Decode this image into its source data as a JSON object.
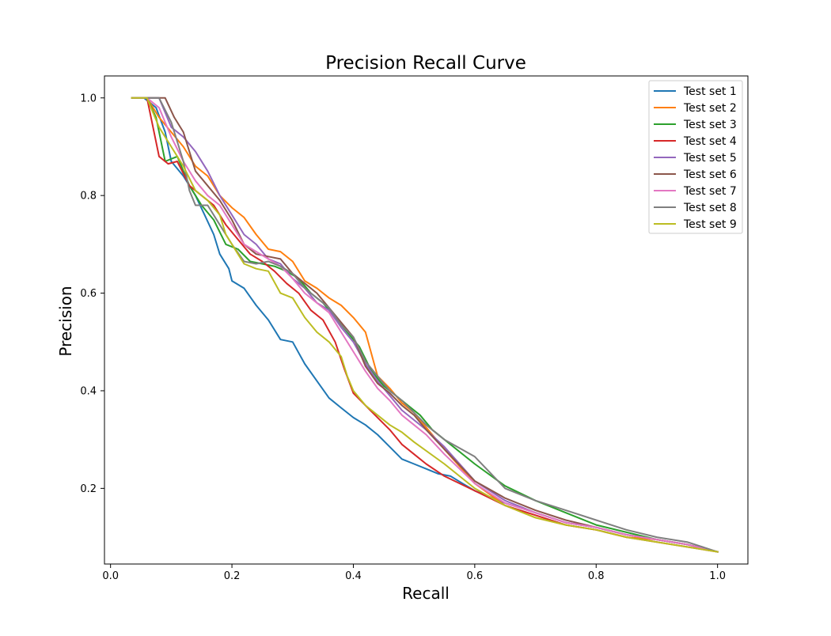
{
  "chart_data": {
    "type": "line",
    "title": "Precision Recall Curve",
    "xlabel": "Recall",
    "ylabel": "Precision",
    "xlim": [
      -0.01,
      1.05
    ],
    "ylim": [
      0.045,
      1.045
    ],
    "xticks": [
      0.0,
      0.2,
      0.4,
      0.6,
      0.8,
      1.0
    ],
    "xtick_labels": [
      "0.0",
      "0.2",
      "0.4",
      "0.6",
      "0.8",
      "1.0"
    ],
    "yticks": [
      0.2,
      0.4,
      0.6,
      0.8,
      1.0
    ],
    "ytick_labels": [
      "0.2",
      "0.4",
      "0.6",
      "0.8",
      "1.0"
    ],
    "grid": false,
    "legend": "top-right",
    "series": [
      {
        "name": "Test set 1",
        "color": "#1f77b4",
        "x": [
          0.035,
          0.055,
          0.075,
          0.09,
          0.1,
          0.12,
          0.14,
          0.155,
          0.17,
          0.18,
          0.195,
          0.2,
          0.22,
          0.24,
          0.26,
          0.28,
          0.3,
          0.32,
          0.34,
          0.36,
          0.38,
          0.4,
          0.42,
          0.44,
          0.46,
          0.48,
          0.5,
          0.52,
          0.54,
          0.56,
          0.58,
          0.6,
          0.65,
          0.7,
          0.75,
          0.8,
          0.85,
          0.9,
          0.95,
          1.0
        ],
        "y": [
          1.0,
          1.0,
          0.98,
          0.93,
          0.87,
          0.84,
          0.8,
          0.76,
          0.72,
          0.68,
          0.65,
          0.625,
          0.61,
          0.575,
          0.545,
          0.505,
          0.5,
          0.455,
          0.42,
          0.385,
          0.365,
          0.345,
          0.33,
          0.31,
          0.285,
          0.26,
          0.25,
          0.24,
          0.23,
          0.225,
          0.21,
          0.195,
          0.17,
          0.15,
          0.13,
          0.12,
          0.105,
          0.095,
          0.085,
          0.07
        ]
      },
      {
        "name": "Test set 2",
        "color": "#ff7f0e",
        "x": [
          0.035,
          0.06,
          0.08,
          0.1,
          0.12,
          0.14,
          0.16,
          0.18,
          0.2,
          0.22,
          0.24,
          0.26,
          0.28,
          0.3,
          0.32,
          0.34,
          0.36,
          0.38,
          0.4,
          0.42,
          0.44,
          0.46,
          0.48,
          0.5,
          0.52,
          0.55,
          0.6,
          0.65,
          0.7,
          0.75,
          0.8,
          0.85,
          0.9,
          0.95,
          1.0
        ],
        "y": [
          1.0,
          1.0,
          0.96,
          0.93,
          0.9,
          0.86,
          0.84,
          0.8,
          0.775,
          0.755,
          0.72,
          0.69,
          0.685,
          0.665,
          0.625,
          0.61,
          0.59,
          0.575,
          0.55,
          0.52,
          0.43,
          0.405,
          0.375,
          0.355,
          0.325,
          0.28,
          0.21,
          0.165,
          0.14,
          0.125,
          0.115,
          0.1,
          0.095,
          0.085,
          0.07
        ]
      },
      {
        "name": "Test set 3",
        "color": "#2ca02c",
        "x": [
          0.035,
          0.06,
          0.075,
          0.09,
          0.11,
          0.13,
          0.15,
          0.17,
          0.19,
          0.21,
          0.23,
          0.25,
          0.27,
          0.29,
          0.31,
          0.33,
          0.35,
          0.37,
          0.39,
          0.41,
          0.43,
          0.45,
          0.47,
          0.49,
          0.51,
          0.53,
          0.55,
          0.6,
          0.65,
          0.7,
          0.75,
          0.8,
          0.85,
          0.9,
          0.95,
          1.0
        ],
        "y": [
          1.0,
          1.0,
          0.96,
          0.87,
          0.88,
          0.82,
          0.78,
          0.75,
          0.7,
          0.69,
          0.665,
          0.66,
          0.655,
          0.645,
          0.63,
          0.6,
          0.58,
          0.55,
          0.52,
          0.49,
          0.44,
          0.41,
          0.39,
          0.37,
          0.35,
          0.32,
          0.3,
          0.25,
          0.205,
          0.175,
          0.15,
          0.125,
          0.11,
          0.095,
          0.085,
          0.07
        ]
      },
      {
        "name": "Test set 4",
        "color": "#d62728",
        "x": [
          0.035,
          0.06,
          0.08,
          0.095,
          0.11,
          0.13,
          0.15,
          0.17,
          0.19,
          0.21,
          0.23,
          0.25,
          0.27,
          0.29,
          0.31,
          0.33,
          0.35,
          0.37,
          0.385,
          0.4,
          0.42,
          0.44,
          0.46,
          0.48,
          0.5,
          0.52,
          0.55,
          0.6,
          0.65,
          0.7,
          0.75,
          0.8,
          0.85,
          0.9,
          0.95,
          1.0
        ],
        "y": [
          1.0,
          1.0,
          0.88,
          0.865,
          0.87,
          0.82,
          0.8,
          0.78,
          0.74,
          0.71,
          0.68,
          0.665,
          0.645,
          0.62,
          0.6,
          0.565,
          0.545,
          0.5,
          0.445,
          0.395,
          0.37,
          0.345,
          0.32,
          0.29,
          0.27,
          0.25,
          0.225,
          0.195,
          0.165,
          0.145,
          0.125,
          0.115,
          0.1,
          0.09,
          0.08,
          0.07
        ]
      },
      {
        "name": "Test set 5",
        "color": "#9467bd",
        "x": [
          0.035,
          0.06,
          0.08,
          0.1,
          0.12,
          0.14,
          0.16,
          0.18,
          0.2,
          0.22,
          0.24,
          0.26,
          0.28,
          0.3,
          0.32,
          0.34,
          0.36,
          0.38,
          0.4,
          0.42,
          0.44,
          0.46,
          0.48,
          0.5,
          0.52,
          0.55,
          0.6,
          0.65,
          0.7,
          0.75,
          0.8,
          0.85,
          0.9,
          0.95,
          1.0
        ],
        "y": [
          1.0,
          1.0,
          1.0,
          0.94,
          0.92,
          0.89,
          0.85,
          0.8,
          0.76,
          0.72,
          0.7,
          0.67,
          0.66,
          0.63,
          0.61,
          0.58,
          0.565,
          0.53,
          0.5,
          0.455,
          0.42,
          0.39,
          0.36,
          0.34,
          0.32,
          0.285,
          0.215,
          0.175,
          0.15,
          0.13,
          0.12,
          0.105,
          0.095,
          0.085,
          0.07
        ]
      },
      {
        "name": "Test set 6",
        "color": "#8c564b",
        "x": [
          0.035,
          0.06,
          0.08,
          0.09,
          0.105,
          0.12,
          0.14,
          0.16,
          0.18,
          0.2,
          0.22,
          0.24,
          0.26,
          0.28,
          0.3,
          0.32,
          0.34,
          0.36,
          0.38,
          0.4,
          0.42,
          0.44,
          0.46,
          0.48,
          0.5,
          0.52,
          0.55,
          0.6,
          0.65,
          0.7,
          0.75,
          0.8,
          0.85,
          0.9,
          0.95,
          1.0
        ],
        "y": [
          1.0,
          1.0,
          1.0,
          1.0,
          0.96,
          0.93,
          0.85,
          0.82,
          0.79,
          0.75,
          0.7,
          0.68,
          0.675,
          0.67,
          0.64,
          0.62,
          0.6,
          0.57,
          0.54,
          0.51,
          0.45,
          0.415,
          0.395,
          0.37,
          0.35,
          0.32,
          0.28,
          0.215,
          0.18,
          0.155,
          0.135,
          0.12,
          0.105,
          0.095,
          0.085,
          0.07
        ]
      },
      {
        "name": "Test set 7",
        "color": "#e377c2",
        "x": [
          0.035,
          0.06,
          0.08,
          0.1,
          0.12,
          0.14,
          0.16,
          0.18,
          0.2,
          0.22,
          0.24,
          0.26,
          0.28,
          0.3,
          0.32,
          0.34,
          0.36,
          0.38,
          0.4,
          0.42,
          0.44,
          0.46,
          0.48,
          0.5,
          0.52,
          0.55,
          0.6,
          0.65,
          0.7,
          0.75,
          0.8,
          0.85,
          0.9,
          0.95,
          1.0
        ],
        "y": [
          1.0,
          1.0,
          0.98,
          0.92,
          0.87,
          0.83,
          0.8,
          0.78,
          0.74,
          0.7,
          0.685,
          0.67,
          0.655,
          0.63,
          0.6,
          0.58,
          0.56,
          0.52,
          0.48,
          0.44,
          0.405,
          0.38,
          0.35,
          0.33,
          0.31,
          0.27,
          0.21,
          0.17,
          0.15,
          0.13,
          0.12,
          0.105,
          0.095,
          0.085,
          0.07
        ]
      },
      {
        "name": "Test set 8",
        "color": "#7f7f7f",
        "x": [
          0.035,
          0.06,
          0.08,
          0.1,
          0.12,
          0.13,
          0.14,
          0.16,
          0.18,
          0.2,
          0.22,
          0.24,
          0.26,
          0.28,
          0.3,
          0.32,
          0.34,
          0.36,
          0.38,
          0.4,
          0.42,
          0.44,
          0.46,
          0.48,
          0.5,
          0.52,
          0.55,
          0.6,
          0.65,
          0.7,
          0.75,
          0.8,
          0.85,
          0.9,
          0.95,
          1.0
        ],
        "y": [
          1.0,
          1.0,
          1.0,
          0.95,
          0.87,
          0.81,
          0.78,
          0.78,
          0.74,
          0.7,
          0.665,
          0.66,
          0.665,
          0.655,
          0.64,
          0.61,
          0.59,
          0.57,
          0.535,
          0.51,
          0.46,
          0.43,
          0.4,
          0.38,
          0.355,
          0.33,
          0.3,
          0.265,
          0.2,
          0.175,
          0.155,
          0.135,
          0.115,
          0.1,
          0.09,
          0.07
        ]
      },
      {
        "name": "Test set 9",
        "color": "#bcbd22",
        "x": [
          0.035,
          0.06,
          0.08,
          0.1,
          0.12,
          0.14,
          0.16,
          0.18,
          0.19,
          0.21,
          0.22,
          0.24,
          0.26,
          0.28,
          0.3,
          0.32,
          0.34,
          0.36,
          0.38,
          0.39,
          0.4,
          0.42,
          0.44,
          0.46,
          0.48,
          0.5,
          0.55,
          0.6,
          0.65,
          0.7,
          0.75,
          0.8,
          0.85,
          0.9,
          0.95,
          1.0
        ],
        "y": [
          1.0,
          1.0,
          0.94,
          0.9,
          0.86,
          0.81,
          0.79,
          0.76,
          0.72,
          0.68,
          0.66,
          0.65,
          0.645,
          0.6,
          0.59,
          0.55,
          0.52,
          0.5,
          0.47,
          0.43,
          0.4,
          0.37,
          0.35,
          0.33,
          0.315,
          0.295,
          0.25,
          0.2,
          0.165,
          0.14,
          0.125,
          0.115,
          0.1,
          0.09,
          0.08,
          0.07
        ]
      }
    ]
  }
}
